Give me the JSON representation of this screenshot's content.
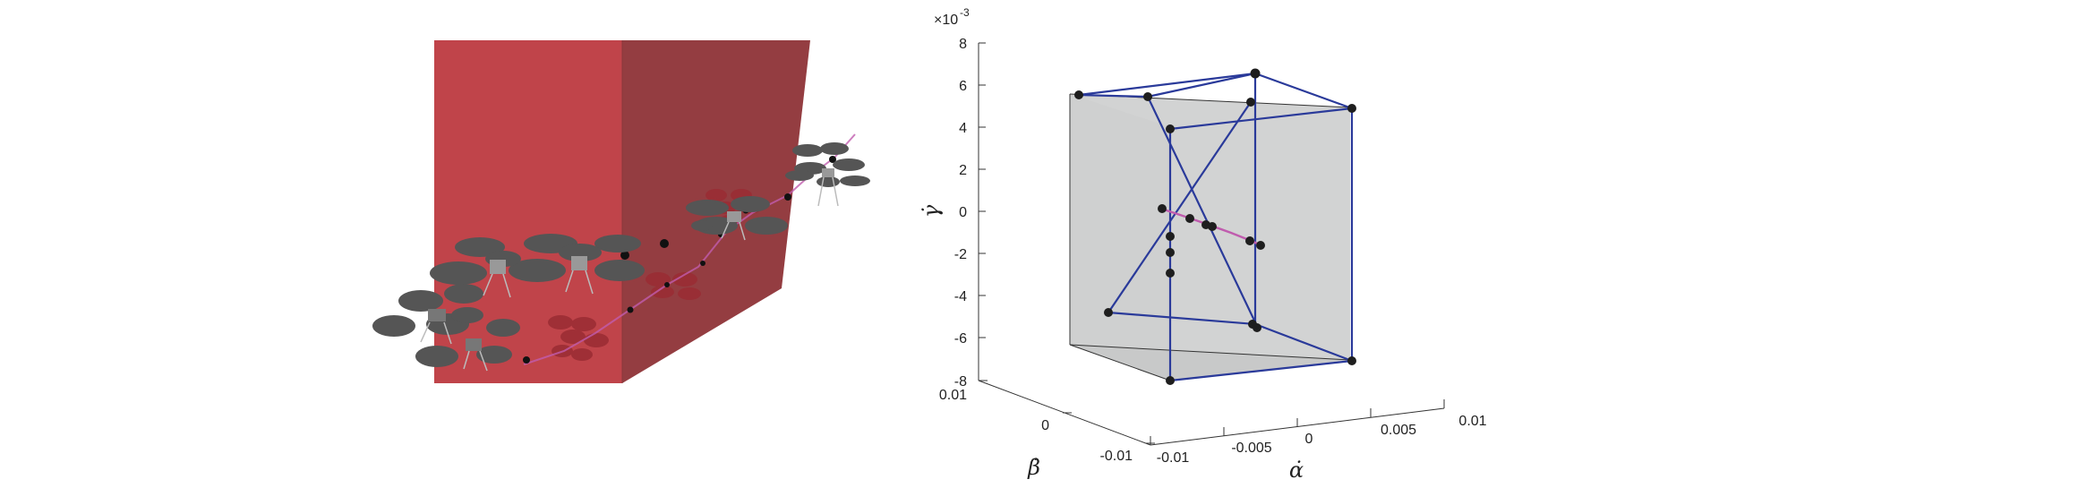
{
  "colors": {
    "obstacle_front": "#c0444a",
    "obstacle_side": "#943d41",
    "box_fill": "#d2d3d3",
    "polytope_edge": "#2a3a9a",
    "trajectory": "#c05cae",
    "vertex": "#1e1e1e",
    "drone_body": "#555555",
    "axis": "#333333"
  },
  "scene": {
    "obstacle": "red-box",
    "drones": 6,
    "path": "dotted-trajectory"
  },
  "chart_data": {
    "type": "scatter",
    "projection": "3d",
    "axes": {
      "x": {
        "label": "α̇",
        "ticks": [
          "-0.01",
          "-0.005",
          "0",
          "0.005",
          "0.01"
        ],
        "range": [
          -0.01,
          0.01
        ]
      },
      "y": {
        "label": "β̇",
        "ticks": [
          "-0.01",
          "0",
          "0.01"
        ],
        "range": [
          -0.01,
          0.01
        ]
      },
      "z": {
        "label": "γ̇",
        "ticks": [
          "-8",
          "-6",
          "-4",
          "-2",
          "0",
          "2",
          "4",
          "6",
          "8"
        ],
        "range": [
          -8,
          8
        ],
        "exponent": "×10",
        "exponent_power": "-3"
      }
    },
    "grid": false
  }
}
